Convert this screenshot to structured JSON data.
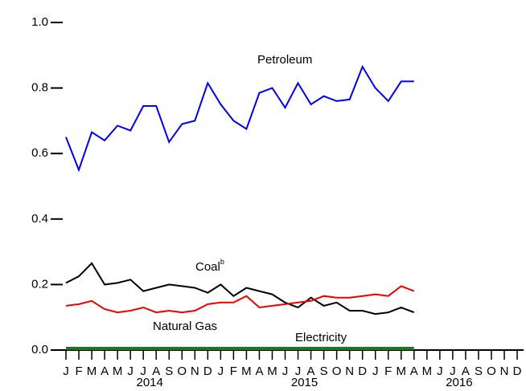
{
  "chart_data": {
    "type": "line",
    "categories": [
      "J",
      "F",
      "M",
      "A",
      "M",
      "J",
      "J",
      "A",
      "S",
      "O",
      "N",
      "D",
      "J",
      "F",
      "M",
      "A",
      "M",
      "J",
      "J",
      "A",
      "S",
      "O",
      "N",
      "D",
      "J",
      "F",
      "M",
      "A",
      "M",
      "J",
      "J",
      "A",
      "S",
      "O",
      "N",
      "D"
    ],
    "years": [
      "2014",
      "2015",
      "2016"
    ],
    "ylim": [
      0,
      1
    ],
    "yticks": [
      {
        "value": 0,
        "label": "0.0"
      },
      0.2,
      0.4,
      0.6,
      0.8,
      {
        "value": 1,
        "label": "1.0"
      }
    ],
    "series": [
      {
        "name": "Petroleum",
        "color": "#0000ee",
        "values": [
          0.65,
          0.55,
          0.665,
          0.64,
          0.685,
          0.67,
          0.745,
          0.745,
          0.635,
          0.69,
          0.7,
          0.815,
          0.75,
          0.7,
          0.675,
          0.785,
          0.8,
          0.74,
          0.815,
          0.75,
          0.775,
          0.76,
          0.765,
          0.865,
          0.8,
          0.76,
          0.82,
          0.82,
          null,
          null,
          null,
          null,
          null,
          null,
          null,
          null
        ]
      },
      {
        "name": "Coal",
        "footnote": "b",
        "color": "#000000",
        "values": [
          0.205,
          0.225,
          0.265,
          0.2,
          0.205,
          0.215,
          0.18,
          0.19,
          0.2,
          0.195,
          0.19,
          0.175,
          0.2,
          0.165,
          0.19,
          0.18,
          0.17,
          0.145,
          0.13,
          0.16,
          0.135,
          0.145,
          0.12,
          0.12,
          0.11,
          0.115,
          0.13,
          0.115,
          null,
          null,
          null,
          null,
          null,
          null,
          null,
          null
        ]
      },
      {
        "name": "Natural Gas",
        "color": "#ee0000",
        "values": [
          0.135,
          0.14,
          0.15,
          0.125,
          0.115,
          0.12,
          0.13,
          0.115,
          0.12,
          0.115,
          0.12,
          0.14,
          0.145,
          0.145,
          0.165,
          0.13,
          0.135,
          0.14,
          0.145,
          0.15,
          0.165,
          0.16,
          0.16,
          0.165,
          0.17,
          0.165,
          0.195,
          0.18,
          null,
          null,
          null,
          null,
          null,
          null,
          null,
          null
        ]
      },
      {
        "name": "Electricity",
        "color": "#1a7a1a",
        "values": [
          0.005,
          0.005,
          0.005,
          0.005,
          0.005,
          0.005,
          0.005,
          0.005,
          0.005,
          0.005,
          0.005,
          0.005,
          0.005,
          0.005,
          0.005,
          0.005,
          0.005,
          0.005,
          0.005,
          0.005,
          0.005,
          0.005,
          0.005,
          0.005,
          0.005,
          0.005,
          0.005,
          0.005,
          null,
          null,
          null,
          null,
          null,
          null,
          null,
          null
        ]
      }
    ]
  }
}
